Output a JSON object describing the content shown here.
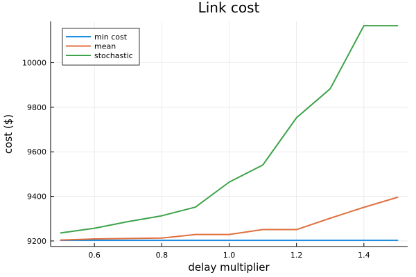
{
  "chart_data": {
    "type": "line",
    "title": "Link cost",
    "xlabel": "delay multiplier",
    "ylabel": "cost ($)",
    "xlim": [
      0.47,
      1.53
    ],
    "ylim": [
      9175,
      10185
    ],
    "xticks": [
      0.6,
      0.8,
      1.0,
      1.2,
      1.4
    ],
    "xtick_labels": [
      "0.6",
      "0.8",
      "1.0",
      "1.2",
      "1.4"
    ],
    "yticks": [
      9200,
      9400,
      9600,
      9800,
      10000
    ],
    "ytick_labels": [
      "9200",
      "9400",
      "9600",
      "9800",
      "10000"
    ],
    "grid": true,
    "legend_position": "top-left",
    "x": [
      0.5,
      0.6,
      0.7,
      0.8,
      0.9,
      1.0,
      1.1,
      1.2,
      1.3,
      1.4,
      1.5
    ],
    "series": [
      {
        "name": "min cost",
        "color": "#1f8fe0",
        "values": [
          9203,
          9203,
          9203,
          9203,
          9203,
          9203,
          9203,
          9203,
          9203,
          9203,
          9203
        ]
      },
      {
        "name": "mean",
        "color": "#e0703e",
        "values": [
          9204,
          9209,
          9211,
          9213,
          9229,
          9229,
          9251,
          9251,
          9302,
          9351,
          9396
        ]
      },
      {
        "name": "stochastic",
        "color": "#3ea34a",
        "values": [
          9236,
          9257,
          9287,
          9313,
          9352,
          9464,
          9541,
          9753,
          9883,
          10166,
          10166
        ]
      }
    ]
  }
}
